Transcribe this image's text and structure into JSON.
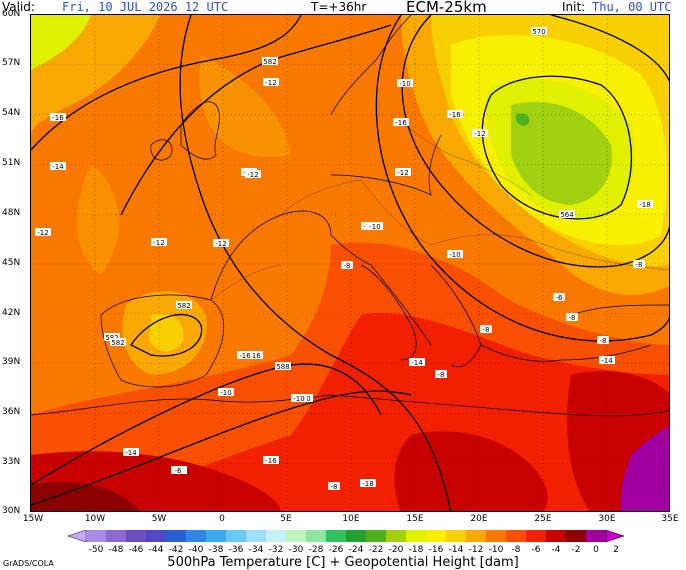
{
  "header": {
    "valid_label": "Valid:",
    "valid_value": "Fri, 10 JUL 2026   12 UTC",
    "lead": "T=+36hr",
    "model": "ECM-25km",
    "init_label": "Init:",
    "init_value": "Thu, 00 UTC"
  },
  "axes": {
    "lat": [
      "60N",
      "57N",
      "54N",
      "51N",
      "48N",
      "45N",
      "42N",
      "39N",
      "36N",
      "33N",
      "30N"
    ],
    "lon": [
      "15W",
      "10W",
      "5W",
      "0",
      "5E",
      "10E",
      "15E",
      "20E",
      "25E",
      "30E",
      "35E"
    ]
  },
  "colorbar": {
    "values": [
      "-50",
      "-48",
      "-46",
      "-44",
      "-42",
      "-40",
      "-38",
      "-36",
      "-34",
      "-32",
      "-30",
      "-28",
      "-26",
      "-24",
      "-22",
      "-20",
      "-18",
      "-16",
      "-14",
      "-12",
      "-10",
      "-8",
      "-6",
      "-4",
      "-2",
      "0",
      "2"
    ],
    "colors": [
      "#c8a8f8",
      "#a98ce6",
      "#8a6ad2",
      "#6a4cc0",
      "#4f48c8",
      "#2a5fd8",
      "#2f86e6",
      "#3aaaf0",
      "#69c8f6",
      "#a0def8",
      "#c8f0f8",
      "#c0f4c0",
      "#8ce6a0",
      "#30c060",
      "#20a030",
      "#50b020",
      "#a0d010",
      "#e0f000",
      "#f8f000",
      "#f8d000",
      "#f8a800",
      "#f87800",
      "#f85000",
      "#f02000",
      "#c80000",
      "#8c0000",
      "#a000a0",
      "#c800c8"
    ]
  },
  "contours": [
    "570",
    "582",
    "564",
    "588",
    "582",
    "582",
    "582",
    "588"
  ],
  "temp_labels": [
    "-12",
    "-16",
    "-14",
    "-12",
    "-12",
    "-12",
    "-12",
    "-12",
    "-10",
    "-16",
    "-12",
    "-18",
    "-10",
    "-8",
    "-8",
    "-6",
    "-8",
    "-8",
    "-8",
    "-14",
    "-16",
    "-10",
    "-10",
    "-14",
    "-12",
    "-16",
    "-8",
    "-18",
    "-14",
    "-12",
    "-10",
    "-8",
    "-12",
    "-16",
    "-16",
    "-10",
    "-6"
  ],
  "caption": "500hPa Temperature [C] + Geopotential Height [dam]",
  "credit": "GrADS/COLA"
}
